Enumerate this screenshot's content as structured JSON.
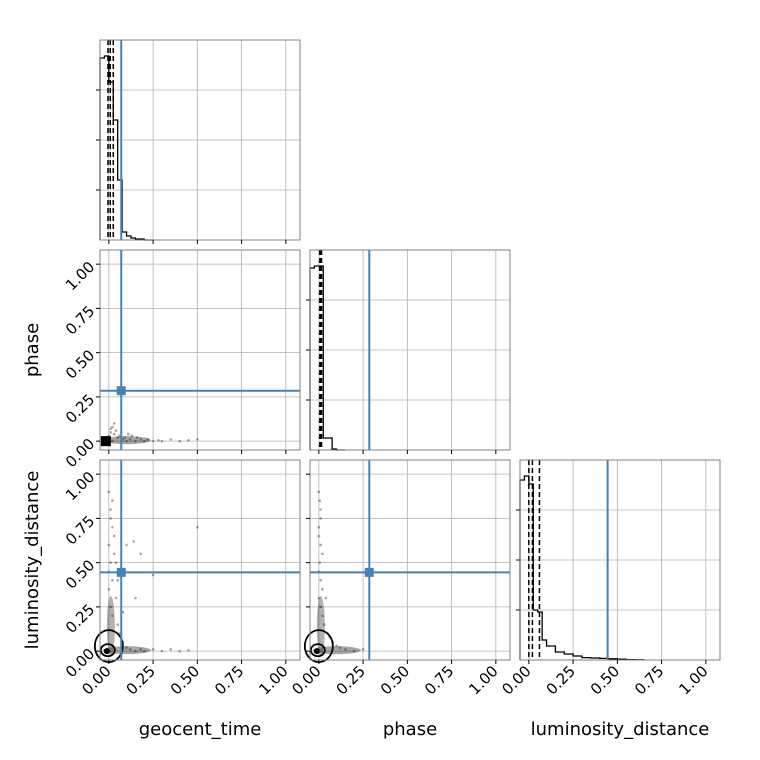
{
  "chart_data": {
    "type": "corner",
    "parameters": [
      "geocent_time",
      "phase",
      "luminosity_distance"
    ],
    "axis_range": [
      -0.05,
      1.08
    ],
    "tick_values": [
      0.0,
      0.25,
      0.5,
      0.75,
      1.0
    ],
    "tick_labels": [
      "0.00",
      "0.25",
      "0.50",
      "0.75",
      "1.00"
    ],
    "grid": true,
    "colors": {
      "truth": "#4682b4",
      "hist": "#000000",
      "grid": "#b0b0b0",
      "frame": "#808080"
    },
    "truths": {
      "geocent_time": 0.07,
      "phase": 0.285,
      "luminosity_distance": 0.445
    },
    "histograms": [
      {
        "parameter": "geocent_time",
        "bin_edges": [
          -0.05,
          -0.025,
          0.0,
          0.025,
          0.05,
          0.075,
          0.1,
          0.125,
          0.15,
          0.175,
          0.2,
          0.25
        ],
        "counts": [
          0.91,
          0.92,
          0.79,
          0.6,
          0.3,
          0.04,
          0.02,
          0.01,
          0.005,
          0.005,
          0.0
        ],
        "ylim": [
          0,
          1.0
        ],
        "quantiles": [
          -0.005,
          0.008,
          0.025
        ]
      },
      {
        "parameter": "phase",
        "bin_edges": [
          -0.05,
          -0.025,
          0.0,
          0.025,
          0.05,
          0.075,
          0.1,
          0.15
        ],
        "counts": [
          0.91,
          0.92,
          0.92,
          0.06,
          0.06,
          0.005,
          0.0
        ],
        "ylim": [
          0,
          1.0
        ],
        "quantiles": [
          0.005,
          0.01,
          0.015
        ]
      },
      {
        "parameter": "luminosity_distance",
        "bin_edges": [
          -0.05,
          -0.025,
          0.0,
          0.025,
          0.05,
          0.075,
          0.1,
          0.15,
          0.2,
          0.25,
          0.3,
          0.35,
          0.4,
          0.45,
          0.5,
          0.55,
          0.6,
          0.65
        ],
        "counts": [
          0.9,
          0.92,
          0.88,
          0.25,
          0.24,
          0.1,
          0.07,
          0.04,
          0.03,
          0.02,
          0.012,
          0.01,
          0.008,
          0.006,
          0.004,
          0.002,
          0.001
        ],
        "ylim": [
          0,
          1.0
        ],
        "quantiles": [
          0.0,
          0.02,
          0.06
        ]
      }
    ],
    "scatter_panels": [
      {
        "x": "geocent_time",
        "y": "phase",
        "points": [
          [
            0.0,
            0.01
          ],
          [
            0.02,
            0.0
          ],
          [
            0.05,
            0.02
          ],
          [
            0.08,
            0.01
          ],
          [
            0.1,
            0.0
          ],
          [
            0.12,
            0.01
          ],
          [
            0.15,
            0.0
          ],
          [
            0.18,
            0.01
          ],
          [
            0.2,
            0.0
          ],
          [
            0.22,
            0.01
          ],
          [
            0.25,
            0.0
          ],
          [
            0.28,
            0.005
          ],
          [
            0.3,
            0.0
          ],
          [
            0.35,
            0.01
          ],
          [
            0.4,
            0.0
          ],
          [
            0.45,
            0.005
          ],
          [
            0.5,
            0.01
          ],
          [
            0.01,
            0.05
          ],
          [
            0.02,
            0.08
          ],
          [
            0.03,
            0.04
          ],
          [
            0.06,
            0.03
          ],
          [
            0.04,
            0.06
          ],
          [
            0.09,
            0.02
          ],
          [
            0.13,
            0.03
          ],
          [
            0.0,
            0.03
          ],
          [
            0.07,
            0.05
          ],
          [
            0.11,
            0.04
          ],
          [
            0.16,
            0.02
          ],
          [
            0.03,
            0.1
          ],
          [
            0.01,
            0.07
          ]
        ]
      },
      {
        "x": "geocent_time",
        "y": "luminosity_distance",
        "points": [
          [
            0.0,
            0.9
          ],
          [
            0.01,
            0.8
          ],
          [
            0.02,
            0.7
          ],
          [
            0.0,
            0.6
          ],
          [
            0.01,
            0.5
          ],
          [
            0.03,
            0.55
          ],
          [
            0.02,
            0.4
          ],
          [
            0.0,
            0.35
          ],
          [
            0.04,
            0.3
          ],
          [
            0.01,
            0.25
          ],
          [
            0.02,
            0.2
          ],
          [
            0.05,
            0.15
          ],
          [
            0.0,
            0.45
          ],
          [
            0.03,
            0.65
          ],
          [
            0.01,
            0.75
          ],
          [
            0.06,
            0.1
          ],
          [
            0.08,
            0.05
          ],
          [
            0.1,
            0.02
          ],
          [
            0.12,
            0.01
          ],
          [
            0.15,
            0.0
          ],
          [
            0.18,
            0.01
          ],
          [
            0.2,
            0.0
          ],
          [
            0.25,
            0.01
          ],
          [
            0.3,
            0.0
          ],
          [
            0.35,
            0.01
          ],
          [
            0.4,
            0.0
          ],
          [
            0.45,
            0.005
          ],
          [
            0.1,
            0.6
          ],
          [
            0.14,
            0.62
          ],
          [
            0.18,
            0.55
          ],
          [
            0.25,
            0.43
          ],
          [
            0.5,
            0.7
          ],
          [
            0.15,
            0.3
          ],
          [
            0.05,
            0.4
          ],
          [
            0.08,
            0.22
          ],
          [
            0.02,
            0.85
          ],
          [
            0.04,
            0.5
          ]
        ]
      },
      {
        "x": "phase",
        "y": "luminosity_distance",
        "points": [
          [
            0.0,
            0.9
          ],
          [
            0.005,
            0.85
          ],
          [
            0.01,
            0.8
          ],
          [
            0.0,
            0.7
          ],
          [
            0.01,
            0.6
          ],
          [
            0.005,
            0.5
          ],
          [
            0.0,
            0.45
          ],
          [
            0.01,
            0.4
          ],
          [
            0.02,
            0.35
          ],
          [
            0.0,
            0.3
          ],
          [
            0.01,
            0.25
          ],
          [
            0.02,
            0.2
          ],
          [
            0.03,
            0.15
          ],
          [
            0.05,
            0.1
          ],
          [
            0.08,
            0.05
          ],
          [
            0.12,
            0.02
          ],
          [
            0.15,
            0.01
          ],
          [
            0.2,
            0.0
          ],
          [
            0.25,
            0.01
          ],
          [
            0.01,
            0.75
          ],
          [
            0.0,
            0.65
          ],
          [
            0.02,
            0.55
          ],
          [
            0.04,
            0.3
          ],
          [
            0.06,
            0.08
          ],
          [
            0.1,
            0.03
          ]
        ]
      }
    ]
  }
}
